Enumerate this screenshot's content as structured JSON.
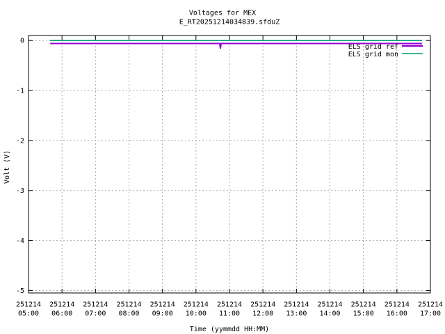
{
  "title": "Voltages for MEX",
  "subtitle": "E_RT20251214034839.sfduZ",
  "axes": {
    "x_label": "Time (yymmdd HH:MM)",
    "y_label": "Volt (V)",
    "x_tick_date": "251214",
    "x_tick_times": [
      "05:00",
      "06:00",
      "07:00",
      "08:00",
      "09:00",
      "10:00",
      "11:00",
      "12:00",
      "13:00",
      "14:00",
      "15:00",
      "16:00",
      "17:00"
    ],
    "y_ticks": [
      "0",
      "-1",
      "-2",
      "-3",
      "-4",
      "-5"
    ]
  },
  "legend": [
    {
      "label": "ELS grid ref",
      "color": "#9400d3"
    },
    {
      "label": "ELS grid mon",
      "color": "#009e73"
    }
  ],
  "colors": {
    "grid": "#a8a8a8",
    "border": "#000000",
    "series_ref": "#9400d3",
    "series_mon": "#009e73"
  },
  "chart_data": {
    "type": "line",
    "title": "Voltages for MEX",
    "subtitle": "E_RT20251214034839.sfduZ",
    "xlabel": "Time (yymmdd HH:MM)",
    "ylabel": "Volt (V)",
    "x_unit": "hours of day on date 251214 (yymmdd)",
    "xlim": [
      5,
      17
    ],
    "ylim": [
      -5.05,
      0.1
    ],
    "grid": true,
    "grid_style": "dashed-gray",
    "legend_position": "top-right-inside",
    "x_ticks_hours": [
      5,
      6,
      7,
      8,
      9,
      10,
      11,
      12,
      13,
      14,
      15,
      16,
      17
    ],
    "y_ticks_volts": [
      0,
      -1,
      -2,
      -3,
      -4,
      -5
    ],
    "series": [
      {
        "name": "ELS grid ref",
        "color": "#9400d3",
        "width": 2,
        "points": [
          [
            5.65,
            -0.06
          ],
          [
            10.71,
            -0.06
          ],
          [
            10.73,
            -0.16
          ],
          [
            10.75,
            -0.06
          ],
          [
            16.75,
            -0.06
          ]
        ],
        "description": "flat at about -0.06 V from ~05:39 to ~16:45 with one narrow downward spike to about -0.16 V at ~10:44"
      },
      {
        "name": "ELS grid mon",
        "color": "#009e73",
        "width": 1.5,
        "points": [
          [
            5.64,
            0.0
          ],
          [
            16.75,
            0.0
          ]
        ],
        "description": "flat at about 0.0 V from ~05:38 to ~16:45"
      }
    ]
  }
}
